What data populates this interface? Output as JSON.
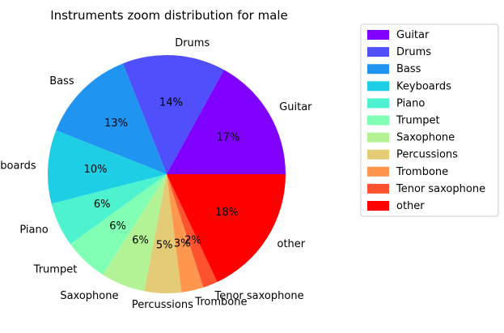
{
  "chart_data": {
    "type": "pie",
    "title": "Instruments zoom distribution for male",
    "legend_position": "right",
    "slices": [
      {
        "label": "Guitar",
        "value": 17,
        "pct_label": "17%",
        "color": "#8000ff"
      },
      {
        "label": "Drums",
        "value": 14,
        "pct_label": "14%",
        "color": "#4f4ffb"
      },
      {
        "label": "Bass",
        "value": 13,
        "pct_label": "13%",
        "color": "#1f95f1"
      },
      {
        "label": "Keyboards",
        "value": 10,
        "pct_label": "10%",
        "color": "#1dcee4"
      },
      {
        "label": "Piano",
        "value": 6,
        "pct_label": "6%",
        "color": "#4df3ce"
      },
      {
        "label": "Trumpet",
        "value": 6,
        "pct_label": "6%",
        "color": "#81ffb4"
      },
      {
        "label": "Saxophone",
        "value": 6,
        "pct_label": "6%",
        "color": "#b3f396"
      },
      {
        "label": "Percussions",
        "value": 5,
        "pct_label": "5%",
        "color": "#e4cb76"
      },
      {
        "label": "Trombone",
        "value": 3,
        "pct_label": "3%",
        "color": "#ff974f"
      },
      {
        "label": "Tenor saxophone",
        "value": 2,
        "pct_label": "2%",
        "color": "#ff5330"
      },
      {
        "label": "other",
        "value": 18,
        "pct_label": "18%",
        "color": "#ff0000"
      }
    ]
  }
}
